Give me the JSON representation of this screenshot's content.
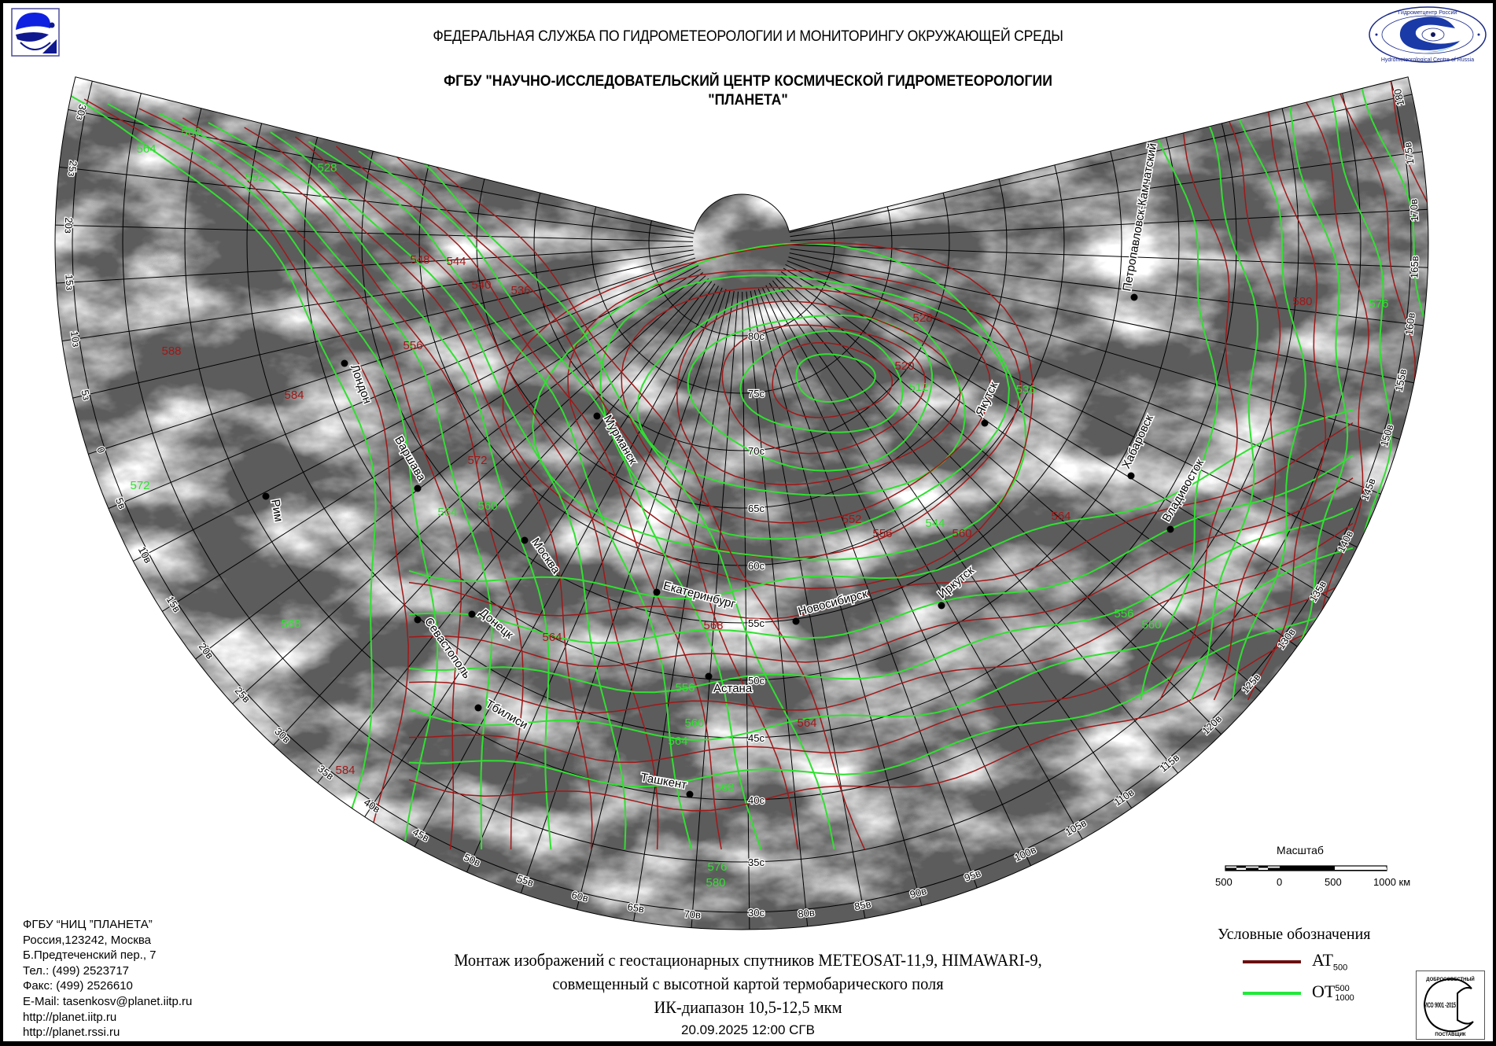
{
  "header": {
    "agency": "ФЕДЕРАЛЬНАЯ СЛУЖБА ПО ГИДРОМЕТЕОРОЛОГИИ И МОНИТОРИНГУ ОКРУЖАЮЩЕЙ СРЕДЫ",
    "center_line1": "ФГБУ \"НАУЧНО-ИССЛЕДОВАТЕЛЬСКИЙ ЦЕНТР КОСМИЧЕСКОЙ ГИДРОМЕТЕОРОЛОГИИ",
    "center_line2": "\"ПЛАНЕТА\"",
    "right_logo_text_top": "Гидрометцентр России",
    "right_logo_text_bottom": "Hydrometeorological Centre of Russia"
  },
  "contact": {
    "lines": [
      "ФГБУ “НИЦ ”ПЛАНЕТА”",
      "Россия,123242, Москва",
      "Б.Предтеченский пер., 7",
      "Тел.:  (499) 2523717",
      "Факс: (499) 2526610",
      "E-Mail: tasenkosv@planet.iitp.ru",
      "http://planet.iitp.ru",
      "http://planet.rssi.ru"
    ]
  },
  "caption": {
    "line1": "Монтаж изображений с геостационарных спутников METEOSAT-11,9, HIMAWARI-9,",
    "line2": "совмещенный с высотной картой термобарического поля",
    "line3": "ИК-диапазон 10,5-12,5 мкм",
    "datetime": "20.09.2025  12:00 СГВ"
  },
  "scale": {
    "title": "Масштаб",
    "labels": [
      "500",
      "0",
      "500",
      "1000 км"
    ]
  },
  "legend": {
    "title": "Условные обозначения",
    "items": [
      {
        "base": "AT",
        "sub": "500",
        "color": "#6b0f0f"
      },
      {
        "base": "OT",
        "sup": "500",
        "sub": "1000",
        "color": "#22e83a"
      }
    ]
  },
  "iso_badge": {
    "top": "ДОБРОСОВЕСТНЫЙ",
    "middle": "ИСО 9001 -2015",
    "bottom": "ПОСТАВЩИК"
  },
  "map": {
    "colors": {
      "at500": "#a01818",
      "ot": "#30e030",
      "grid": "#000000"
    },
    "lat_labels": [
      "80с",
      "75с",
      "70с",
      "65с",
      "60с",
      "55с",
      "50с",
      "45с",
      "40с",
      "35с",
      "30с"
    ],
    "lon_labels": [
      "30з",
      "25з",
      "20з",
      "15з",
      "10з",
      "5з",
      "0",
      "5в",
      "10в",
      "15в",
      "20в",
      "25в",
      "30в",
      "35в",
      "40в",
      "45в",
      "50в",
      "55в",
      "60в",
      "65в",
      "70в",
      "75в",
      "80в",
      "85в",
      "90в",
      "95в",
      "100в",
      "105в",
      "110в",
      "115в",
      "120в",
      "125в",
      "130в",
      "135в",
      "140в",
      "145в",
      "150в",
      "155в",
      "160в",
      "165в",
      "170в",
      "175в",
      "180"
    ],
    "cities": [
      "Лондон",
      "Мурманск",
      "Варшава",
      "Москва",
      "Донецк",
      "Севастополь",
      "Тбилиси",
      "Екатеринбург",
      "Астана",
      "Ташкент",
      "Новосибирск",
      "Иркутск",
      "Якутск",
      "Петропавловск-Камчатский",
      "Хабаровск",
      "Владивосток",
      "Рим"
    ],
    "at500_labels": [
      "548",
      "544",
      "540",
      "536",
      "556",
      "584",
      "588",
      "572",
      "564",
      "560",
      "556",
      "552",
      "564",
      "568",
      "564",
      "580",
      "520",
      "528",
      "584"
    ],
    "ot_labels": [
      "564",
      "560",
      "552",
      "528",
      "568",
      "572",
      "564",
      "560",
      "556",
      "560",
      "576",
      "512",
      "536",
      "544",
      "560",
      "564",
      "568",
      "576",
      "580",
      "556"
    ]
  }
}
